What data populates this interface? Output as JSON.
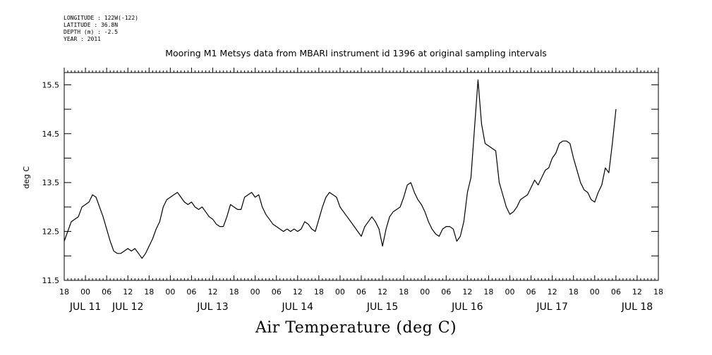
{
  "metadata": {
    "longitude": "LONGITUDE : 122W(-122)",
    "latitude": "LATITUDE : 36.8N",
    "depth": "DEPTH (m) : -2.5",
    "year": "YEAR : 2011"
  },
  "title": "Mooring M1 Metsys data from MBARI instrument id 1396 at original sampling intervals",
  "footer_title": "Air Temperature (deg C)",
  "chart_data": {
    "type": "line",
    "title": "Mooring M1 Metsys data from MBARI instrument id 1396 at original sampling intervals",
    "ylabel": "deg C",
    "xlabel": "Air Temperature (deg C)",
    "ylim": [
      11.5,
      15.75
    ],
    "xlim_hours_from_jul11_00": [
      -6,
      162
    ],
    "y_ticks": [
      "11.5",
      "12.5",
      "13.5",
      "14.5",
      "15.5"
    ],
    "y_tick_values": [
      11.5,
      12.5,
      13.5,
      14.5,
      15.5
    ],
    "x_hour_ticks": [
      "18",
      "00",
      "06",
      "12",
      "18",
      "00",
      "06",
      "12",
      "18",
      "00",
      "06",
      "12",
      "18",
      "00",
      "06",
      "12",
      "18",
      "00",
      "06",
      "12",
      "18",
      "00",
      "06",
      "12",
      "18",
      "00",
      "06",
      "12",
      "18"
    ],
    "x_day_labels": [
      {
        "label": "JUL 11",
        "hour": 0
      },
      {
        "label": "JUL 12",
        "hour": 12
      },
      {
        "label": "JUL 13",
        "hour": 36
      },
      {
        "label": "JUL 14",
        "hour": 60
      },
      {
        "label": "JUL 15",
        "hour": 84
      },
      {
        "label": "JUL 16",
        "hour": 108
      },
      {
        "label": "JUL 17",
        "hour": 132
      },
      {
        "label": "JUL 18",
        "hour": 156
      }
    ],
    "series": [
      {
        "points": [
          [
            -6,
            12.3
          ],
          [
            -5,
            12.5
          ],
          [
            -4,
            12.7
          ],
          [
            -3,
            12.75
          ],
          [
            -2,
            12.8
          ],
          [
            -1,
            13.0
          ],
          [
            0,
            13.05
          ],
          [
            1,
            13.1
          ],
          [
            2,
            13.25
          ],
          [
            3,
            13.2
          ],
          [
            4,
            13.0
          ],
          [
            5,
            12.8
          ],
          [
            6,
            12.55
          ],
          [
            7,
            12.3
          ],
          [
            8,
            12.1
          ],
          [
            9,
            12.05
          ],
          [
            10,
            12.05
          ],
          [
            11,
            12.1
          ],
          [
            12,
            12.15
          ],
          [
            13,
            12.1
          ],
          [
            14,
            12.15
          ],
          [
            15,
            12.05
          ],
          [
            16,
            11.95
          ],
          [
            17,
            12.05
          ],
          [
            18,
            12.2
          ],
          [
            19,
            12.35
          ],
          [
            20,
            12.55
          ],
          [
            21,
            12.7
          ],
          [
            22,
            13.0
          ],
          [
            23,
            13.15
          ],
          [
            24,
            13.2
          ],
          [
            25,
            13.25
          ],
          [
            26,
            13.3
          ],
          [
            27,
            13.2
          ],
          [
            28,
            13.1
          ],
          [
            29,
            13.05
          ],
          [
            30,
            13.1
          ],
          [
            31,
            13.0
          ],
          [
            32,
            12.95
          ],
          [
            33,
            13.0
          ],
          [
            34,
            12.9
          ],
          [
            35,
            12.8
          ],
          [
            36,
            12.75
          ],
          [
            37,
            12.65
          ],
          [
            38,
            12.6
          ],
          [
            39,
            12.6
          ],
          [
            40,
            12.8
          ],
          [
            41,
            13.05
          ],
          [
            42,
            13.0
          ],
          [
            43,
            12.95
          ],
          [
            44,
            12.95
          ],
          [
            45,
            13.2
          ],
          [
            46,
            13.25
          ],
          [
            47,
            13.3
          ],
          [
            48,
            13.2
          ],
          [
            49,
            13.25
          ],
          [
            50,
            13.0
          ],
          [
            51,
            12.85
          ],
          [
            52,
            12.75
          ],
          [
            53,
            12.65
          ],
          [
            54,
            12.6
          ],
          [
            55,
            12.55
          ],
          [
            56,
            12.5
          ],
          [
            57,
            12.55
          ],
          [
            58,
            12.5
          ],
          [
            59,
            12.55
          ],
          [
            60,
            12.5
          ],
          [
            61,
            12.55
          ],
          [
            62,
            12.7
          ],
          [
            63,
            12.65
          ],
          [
            64,
            12.55
          ],
          [
            65,
            12.5
          ],
          [
            66,
            12.75
          ],
          [
            67,
            13.0
          ],
          [
            68,
            13.2
          ],
          [
            69,
            13.3
          ],
          [
            70,
            13.25
          ],
          [
            71,
            13.2
          ],
          [
            72,
            13.0
          ],
          [
            73,
            12.9
          ],
          [
            74,
            12.8
          ],
          [
            75,
            12.7
          ],
          [
            76,
            12.6
          ],
          [
            77,
            12.5
          ],
          [
            78,
            12.4
          ],
          [
            79,
            12.6
          ],
          [
            80,
            12.7
          ],
          [
            81,
            12.8
          ],
          [
            82,
            12.7
          ],
          [
            83,
            12.55
          ],
          [
            84,
            12.2
          ],
          [
            85,
            12.55
          ],
          [
            86,
            12.8
          ],
          [
            87,
            12.9
          ],
          [
            88,
            12.95
          ],
          [
            89,
            13.0
          ],
          [
            90,
            13.2
          ],
          [
            91,
            13.45
          ],
          [
            92,
            13.5
          ],
          [
            93,
            13.3
          ],
          [
            94,
            13.15
          ],
          [
            95,
            13.05
          ],
          [
            96,
            12.9
          ],
          [
            97,
            12.7
          ],
          [
            98,
            12.55
          ],
          [
            99,
            12.45
          ],
          [
            100,
            12.4
          ],
          [
            101,
            12.55
          ],
          [
            102,
            12.6
          ],
          [
            103,
            12.6
          ],
          [
            104,
            12.55
          ],
          [
            105,
            12.3
          ],
          [
            106,
            12.4
          ],
          [
            107,
            12.7
          ],
          [
            108,
            13.3
          ],
          [
            109,
            13.6
          ],
          [
            110,
            14.6
          ],
          [
            111,
            15.6
          ],
          [
            112,
            14.7
          ],
          [
            113,
            14.3
          ],
          [
            114,
            14.25
          ],
          [
            115,
            14.2
          ],
          [
            116,
            14.15
          ],
          [
            117,
            13.5
          ],
          [
            118,
            13.25
          ],
          [
            119,
            13.0
          ],
          [
            120,
            12.85
          ],
          [
            121,
            12.9
          ],
          [
            122,
            13.0
          ],
          [
            123,
            13.15
          ],
          [
            124,
            13.2
          ],
          [
            125,
            13.25
          ],
          [
            126,
            13.4
          ],
          [
            127,
            13.55
          ],
          [
            128,
            13.45
          ],
          [
            129,
            13.6
          ],
          [
            130,
            13.75
          ],
          [
            131,
            13.8
          ],
          [
            132,
            14.0
          ],
          [
            133,
            14.1
          ],
          [
            134,
            14.3
          ],
          [
            135,
            14.35
          ],
          [
            136,
            14.35
          ],
          [
            137,
            14.3
          ],
          [
            138,
            14.0
          ],
          [
            139,
            13.75
          ],
          [
            140,
            13.5
          ],
          [
            141,
            13.35
          ],
          [
            142,
            13.3
          ],
          [
            143,
            13.15
          ],
          [
            144,
            13.1
          ],
          [
            145,
            13.3
          ],
          [
            146,
            13.45
          ],
          [
            147,
            13.8
          ],
          [
            148,
            13.7
          ],
          [
            149,
            14.3
          ],
          [
            150,
            15.0
          ]
        ]
      }
    ],
    "grid": false,
    "line_color": "#000000"
  }
}
